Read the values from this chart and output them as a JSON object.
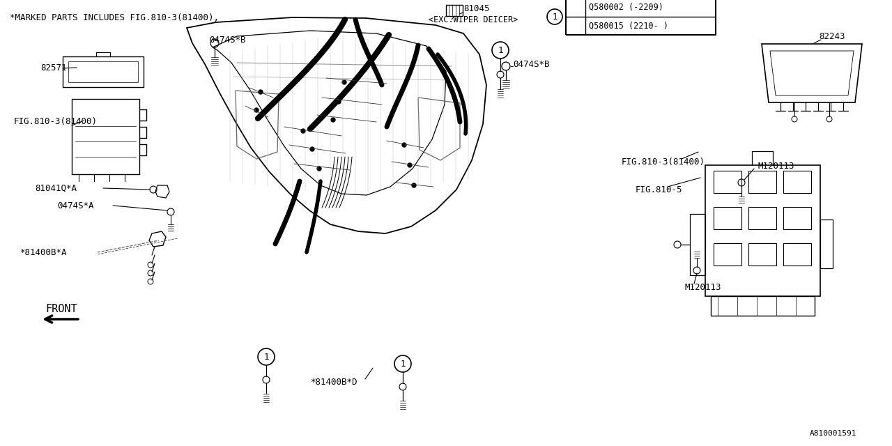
{
  "bg_color": "#ffffff",
  "line_color": "#000000",
  "fig_width": 12.8,
  "fig_height": 6.4,
  "labels": {
    "top_note": "*MARKED PARTS INCLUDES FIG.810-3(81400),",
    "top_note2": "0474S*B",
    "part_82571": "82571",
    "fig_810_3_left": "FIG.810-3(81400)",
    "part_81041": "81041Q*A",
    "part_0474sA": "0474S*A",
    "part_81400bA": "*81400B*A",
    "front_label": "FRONT",
    "part_81045": "81045",
    "exc_wiper": "<EXC.WIPER DEICER>",
    "part_0474sB_top": "0474S*B",
    "part_0474sB_right": "0474S*B",
    "box_line1": "Q580002（-2209）",
    "box_line1_ascii": "Q580002 (-2209)",
    "box_line2_ascii": "Q580015 (2210- )",
    "part_82243": "82243",
    "fig_810_3_right": "FIG.810-3(81400)",
    "fig_810_5": "FIG.810-5",
    "part_M120113_top": "M120113",
    "part_M120113_bot": "M120113",
    "part_81400bD": "*81400B*D",
    "footnote": "A810001591"
  },
  "colors": {
    "main": "#000000",
    "bg": "#ffffff"
  }
}
